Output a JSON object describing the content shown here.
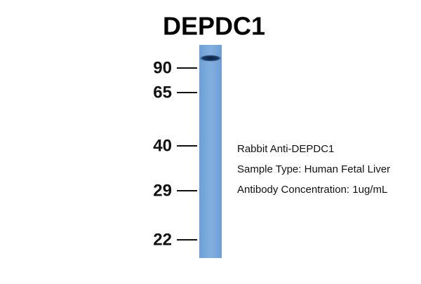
{
  "title": "DEPDC1",
  "markers": [
    "90",
    "65",
    "40",
    "29",
    "22"
  ],
  "annotations": [
    "Rabbit Anti-DEPDC1",
    "Sample Type: Human Fetal Liver",
    "Antibody Concentration: 1ug/mL"
  ]
}
